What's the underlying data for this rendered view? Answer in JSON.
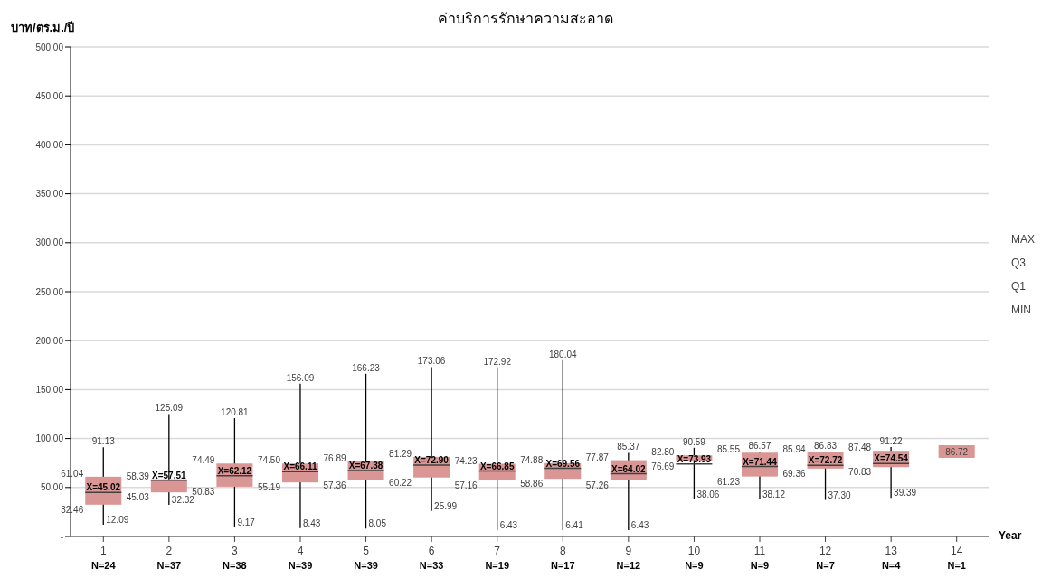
{
  "chart_data": {
    "type": "box",
    "title": "ค่าบริการรักษาความสะอาด",
    "ylabel": "บาท/ตร.ม./ปี",
    "xlabel": "Year",
    "categories": [
      "1",
      "2",
      "3",
      "4",
      "5",
      "6",
      "7",
      "8",
      "9",
      "10",
      "11",
      "12",
      "13",
      "14"
    ],
    "color": "#da9694",
    "boxes": [
      {
        "low": 12.09,
        "q1": 32.46,
        "q3": 61.04,
        "high": 91.13,
        "mean": 45.02
      },
      {
        "low": 32.32,
        "q1": 45.03,
        "q3": 58.39,
        "high": 125.09,
        "mean": 57.51
      },
      {
        "low": 9.17,
        "q1": 50.83,
        "q3": 74.49,
        "high": 120.81,
        "mean": 62.12
      },
      {
        "low": 8.43,
        "q1": 55.19,
        "q3": 74.5,
        "high": 156.09,
        "mean": 66.11
      },
      {
        "low": 8.05,
        "q1": 57.36,
        "q3": 76.89,
        "high": 166.23,
        "mean": 67.38
      },
      {
        "low": 25.99,
        "q1": 60.22,
        "q3": 81.29,
        "high": 173.06,
        "mean": 72.9
      },
      {
        "low": 6.43,
        "q1": 57.16,
        "q3": 74.23,
        "high": 172.92,
        "mean": 66.85
      },
      {
        "low": 6.41,
        "q1": 58.86,
        "q3": 74.88,
        "high": 180.04,
        "mean": 69.56
      },
      {
        "low": 6.43,
        "q1": 57.26,
        "q3": 77.87,
        "high": 85.37,
        "mean": 64.02
      },
      {
        "low": 38.06,
        "q1": 76.69,
        "q3": 82.8,
        "high": 90.59,
        "mean": 73.93
      },
      {
        "low": 38.12,
        "q1": 61.23,
        "q3": 85.55,
        "high": 86.57,
        "mean": 71.44
      },
      {
        "low": 37.3,
        "q1": 69.36,
        "q3": 85.94,
        "high": 86.83,
        "mean": 72.72
      },
      {
        "low": 39.39,
        "q1": 70.83,
        "q3": 87.48,
        "high": 91.22,
        "mean": 74.54
      },
      {
        "low": 86.72,
        "q1": 86.72,
        "q3": 86.72,
        "high": 86.72
      }
    ],
    "ylim": [
      0,
      500
    ],
    "yticks": [
      {
        "value": 0,
        "label": "-"
      },
      {
        "value": 50,
        "label": "50.00"
      },
      {
        "value": 100,
        "label": "100.00"
      },
      {
        "value": 150,
        "label": "150.00"
      },
      {
        "value": 200,
        "label": "200.00"
      },
      {
        "value": 250,
        "label": "250.00"
      },
      {
        "value": 300,
        "label": "300.00"
      },
      {
        "value": 350,
        "label": "350.00"
      },
      {
        "value": 400,
        "label": "400.00"
      },
      {
        "value": 450,
        "label": "450.00"
      },
      {
        "value": 500,
        "label": "500.00"
      }
    ],
    "grid": "y",
    "annotations": [
      {
        "text": "X=45.02",
        "x": "1",
        "y": 45.02
      },
      {
        "text": "91.13",
        "x": "1",
        "y": 91.13
      },
      {
        "text": "61.04",
        "x": "1",
        "y": 61.04
      },
      {
        "text": "32.46",
        "x": "1",
        "y": 32.46
      },
      {
        "text": "12.09",
        "x": "1",
        "y": 12.09
      },
      {
        "text": "X=57.51",
        "x": "2",
        "y": 57.51
      },
      {
        "text": "125.09",
        "x": "2",
        "y": 125.09
      },
      {
        "text": "58.39",
        "x": "2",
        "y": 58.39
      },
      {
        "text": "45.03",
        "x": "2",
        "y": 45.03
      },
      {
        "text": "32.32",
        "x": "2",
        "y": 32.32
      },
      {
        "text": "X=62.12",
        "x": "3",
        "y": 62.12
      },
      {
        "text": "120.81",
        "x": "3",
        "y": 120.81
      },
      {
        "text": "74.49",
        "x": "3",
        "y": 74.49
      },
      {
        "text": "50.83",
        "x": "3",
        "y": 50.83
      },
      {
        "text": "9.17",
        "x": "3",
        "y": 9.17
      },
      {
        "text": "X=66.11",
        "x": "4",
        "y": 66.11
      },
      {
        "text": "156.09",
        "x": "4",
        "y": 156.09
      },
      {
        "text": "74.50",
        "x": "4",
        "y": 74.5
      },
      {
        "text": "55.19",
        "x": "4",
        "y": 55.19
      },
      {
        "text": "8.43",
        "x": "4",
        "y": 8.43
      },
      {
        "text": "X=67.38",
        "x": "5",
        "y": 67.38
      },
      {
        "text": "166.23",
        "x": "5",
        "y": 166.23
      },
      {
        "text": "76.89",
        "x": "5",
        "y": 76.89
      },
      {
        "text": "57.36",
        "x": "5",
        "y": 57.36
      },
      {
        "text": "8.05",
        "x": "5",
        "y": 8.05
      },
      {
        "text": "X=72.90",
        "x": "6",
        "y": 72.9
      },
      {
        "text": "173.06",
        "x": "6",
        "y": 173.06
      },
      {
        "text": "81.29",
        "x": "6",
        "y": 81.29
      },
      {
        "text": "60.22",
        "x": "6",
        "y": 60.22
      },
      {
        "text": "25.99",
        "x": "6",
        "y": 25.99
      },
      {
        "text": "X=66.85",
        "x": "7",
        "y": 66.85
      },
      {
        "text": "172.92",
        "x": "7",
        "y": 172.92
      },
      {
        "text": "74.23",
        "x": "7",
        "y": 74.23
      },
      {
        "text": "57.16",
        "x": "7",
        "y": 57.16
      },
      {
        "text": "6.43",
        "x": "7",
        "y": 6.43
      },
      {
        "text": "X=69.56",
        "x": "8",
        "y": 69.56
      },
      {
        "text": "180.04",
        "x": "8",
        "y": 180.04
      },
      {
        "text": "74.88",
        "x": "8",
        "y": 74.88
      },
      {
        "text": "58.86",
        "x": "8",
        "y": 58.86
      },
      {
        "text": "6.41",
        "x": "8",
        "y": 6.41
      },
      {
        "text": "X=64.02",
        "x": "9",
        "y": 64.02
      },
      {
        "text": "85.37",
        "x": "9",
        "y": 85.37
      },
      {
        "text": "77.87",
        "x": "9",
        "y": 77.87
      },
      {
        "text": "57.26",
        "x": "9",
        "y": 57.26
      },
      {
        "text": "6.43",
        "x": "9",
        "y": 6.43
      },
      {
        "text": "X=73.93",
        "x": "10",
        "y": 73.93
      },
      {
        "text": "90.59",
        "x": "10",
        "y": 90.59
      },
      {
        "text": "82.80",
        "x": "10",
        "y": 82.8
      },
      {
        "text": "76.69",
        "x": "10",
        "y": 76.69
      },
      {
        "text": "38.06",
        "x": "10",
        "y": 38.06
      },
      {
        "text": "X=71.44",
        "x": "11",
        "y": 71.44
      },
      {
        "text": "86.57",
        "x": "11",
        "y": 86.57
      },
      {
        "text": "85.55",
        "x": "11",
        "y": 85.55
      },
      {
        "text": "61.23",
        "x": "11",
        "y": 61.23
      },
      {
        "text": "38.12",
        "x": "11",
        "y": 38.12
      },
      {
        "text": "X=72.72",
        "x": "12",
        "y": 72.72
      },
      {
        "text": "86.83",
        "x": "12",
        "y": 86.83
      },
      {
        "text": "85.94",
        "x": "12",
        "y": 85.94
      },
      {
        "text": "69.36",
        "x": "12",
        "y": 69.36
      },
      {
        "text": "37.30",
        "x": "12",
        "y": 37.3
      },
      {
        "text": "X=74.54",
        "x": "13",
        "y": 74.54
      },
      {
        "text": "91.22",
        "x": "13",
        "y": 91.22
      },
      {
        "text": "87.48",
        "x": "13",
        "y": 87.48
      },
      {
        "text": "70.83",
        "x": "13",
        "y": 70.83
      },
      {
        "text": "39.39",
        "x": "13",
        "y": 39.39
      },
      {
        "text": "86.72",
        "x": "14",
        "y": 86.72
      },
      "N=24",
      "N=37",
      "N=38",
      "N=39",
      "N=39",
      "N=33",
      "N=19",
      "N=17",
      "N=12",
      "N=9",
      "N=9",
      "N=7",
      "N=4",
      "N=1",
      "MAX",
      "Q3",
      "Q1",
      "MIN"
    ]
  }
}
